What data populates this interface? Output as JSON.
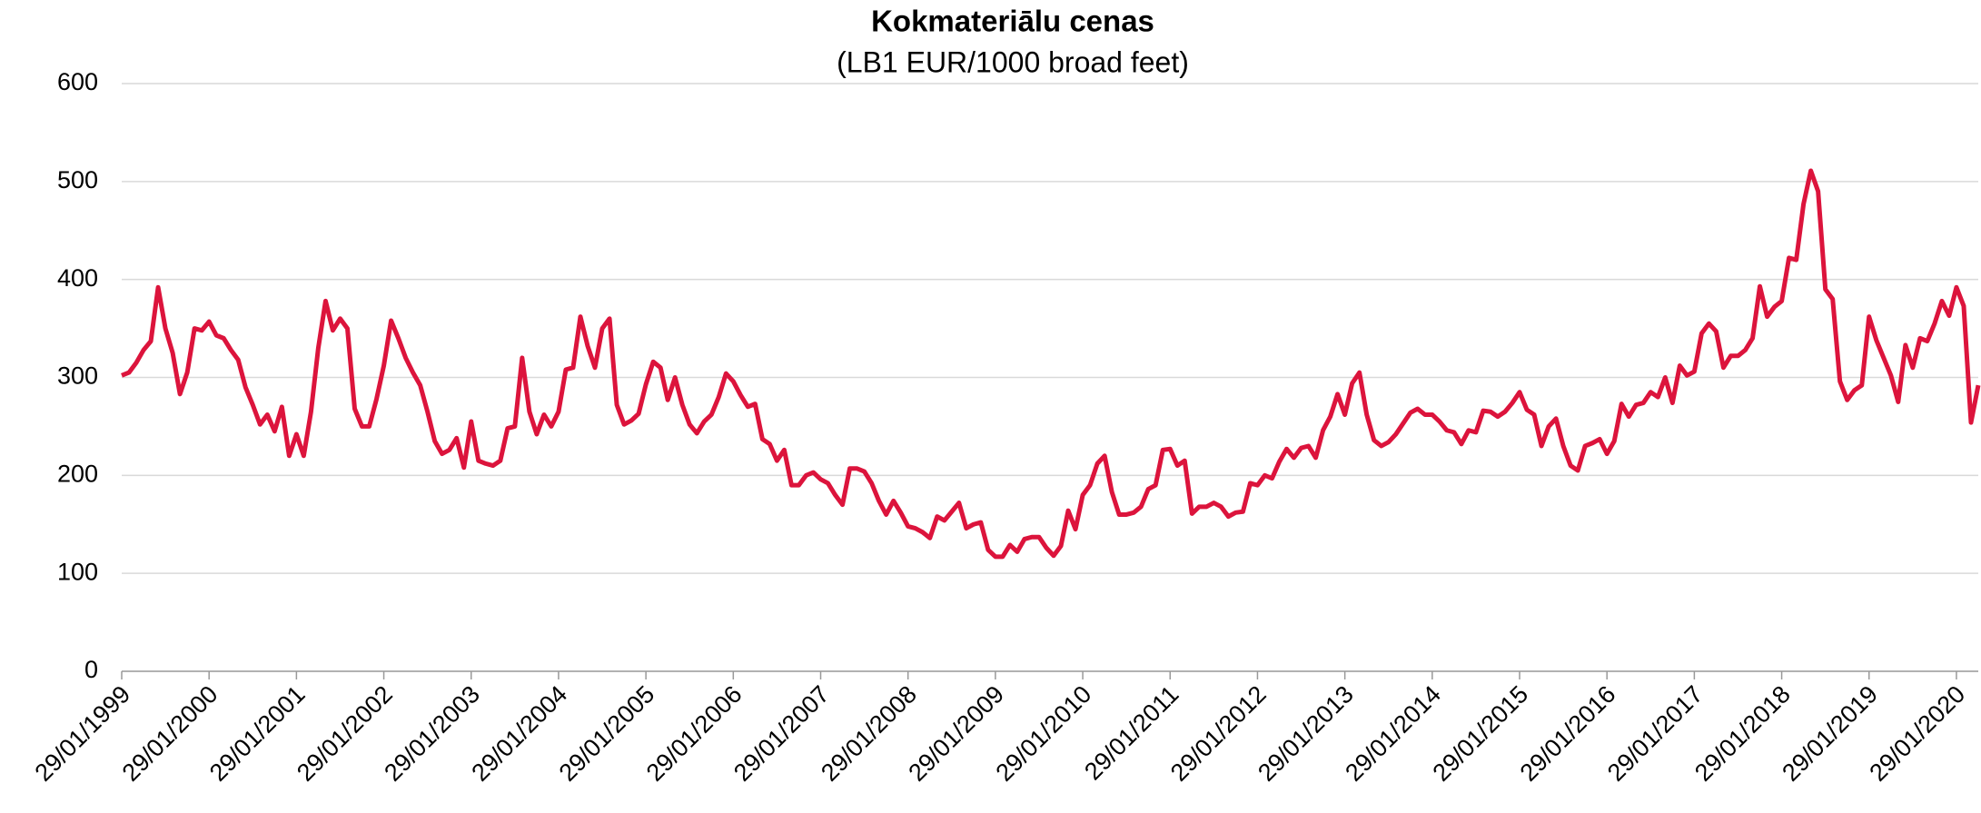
{
  "chart_data": {
    "type": "line",
    "title": "Kokmateriālu cenas",
    "subtitle": "(LB1 EUR/1000 broad feet)",
    "categories": [
      "29/01/1999",
      null,
      null,
      null,
      null,
      null,
      null,
      null,
      null,
      null,
      null,
      null,
      "29/01/2000",
      null,
      null,
      null,
      null,
      null,
      null,
      null,
      null,
      null,
      null,
      null,
      "29/01/2001",
      null,
      null,
      null,
      null,
      null,
      null,
      null,
      null,
      null,
      null,
      null,
      "29/01/2002",
      null,
      null,
      null,
      null,
      null,
      null,
      null,
      null,
      null,
      null,
      null,
      "29/01/2003",
      null,
      null,
      null,
      null,
      null,
      null,
      null,
      null,
      null,
      null,
      null,
      "29/01/2004",
      null,
      null,
      null,
      null,
      null,
      null,
      null,
      null,
      null,
      null,
      null,
      "29/01/2005",
      null,
      null,
      null,
      null,
      null,
      null,
      null,
      null,
      null,
      null,
      null,
      "29/01/2006",
      null,
      null,
      null,
      null,
      null,
      null,
      null,
      null,
      null,
      null,
      null,
      "29/01/2007",
      null,
      null,
      null,
      null,
      null,
      null,
      null,
      null,
      null,
      null,
      null,
      "29/01/2008",
      null,
      null,
      null,
      null,
      null,
      null,
      null,
      null,
      null,
      null,
      null,
      "29/01/2009",
      null,
      null,
      null,
      null,
      null,
      null,
      null,
      null,
      null,
      null,
      null,
      "29/01/2010",
      null,
      null,
      null,
      null,
      null,
      null,
      null,
      null,
      null,
      null,
      null,
      "29/01/2011",
      null,
      null,
      null,
      null,
      null,
      null,
      null,
      null,
      null,
      null,
      null,
      "29/01/2012",
      null,
      null,
      null,
      null,
      null,
      null,
      null,
      null,
      null,
      null,
      null,
      "29/01/2013",
      null,
      null,
      null,
      null,
      null,
      null,
      null,
      null,
      null,
      null,
      null,
      "29/01/2014",
      null,
      null,
      null,
      null,
      null,
      null,
      null,
      null,
      null,
      null,
      null,
      "29/01/2015",
      null,
      null,
      null,
      null,
      null,
      null,
      null,
      null,
      null,
      null,
      null,
      "29/01/2016",
      null,
      null,
      null,
      null,
      null,
      null,
      null,
      null,
      null,
      null,
      null,
      "29/01/2017",
      null,
      null,
      null,
      null,
      null,
      null,
      null,
      null,
      null,
      null,
      null,
      "29/01/2018",
      null,
      null,
      null,
      null,
      null,
      null,
      null,
      null,
      null,
      null,
      null,
      "29/01/2019",
      null,
      null,
      null,
      null,
      null,
      null,
      null,
      null,
      null,
      null,
      null,
      "29/01/2020",
      null,
      null,
      null
    ],
    "values": [
      302,
      305,
      315,
      328,
      337,
      392,
      350,
      325,
      283,
      305,
      350,
      348,
      357,
      343,
      340,
      328,
      318,
      290,
      272,
      252,
      262,
      245,
      270,
      220,
      242,
      220,
      265,
      330,
      378,
      348,
      360,
      350,
      268,
      250,
      250,
      278,
      312,
      358,
      340,
      320,
      305,
      292,
      265,
      235,
      222,
      226,
      238,
      208,
      255,
      215,
      212,
      210,
      215,
      248,
      250,
      320,
      265,
      242,
      262,
      250,
      265,
      308,
      310,
      362,
      332,
      310,
      350,
      360,
      272,
      252,
      256,
      263,
      293,
      316,
      310,
      277,
      300,
      272,
      252,
      243,
      255,
      262,
      280,
      304,
      296,
      282,
      270,
      273,
      237,
      232,
      215,
      226,
      190,
      190,
      200,
      203,
      196,
      192,
      180,
      170,
      207,
      207,
      204,
      192,
      174,
      160,
      174,
      162,
      148,
      146,
      142,
      136,
      158,
      154,
      163,
      172,
      146,
      150,
      152,
      124,
      117,
      117,
      129,
      122,
      135,
      137,
      137,
      126,
      118,
      128,
      164,
      145,
      180,
      190,
      212,
      220,
      183,
      160,
      160,
      162,
      168,
      186,
      190,
      226,
      227,
      210,
      215,
      161,
      168,
      168,
      172,
      168,
      158,
      162,
      163,
      192,
      190,
      200,
      197,
      214,
      227,
      218,
      228,
      230,
      218,
      246,
      260,
      283,
      262,
      294,
      305,
      262,
      236,
      230,
      234,
      242,
      253,
      264,
      268,
      262,
      262,
      255,
      246,
      244,
      232,
      246,
      244,
      266,
      265,
      260,
      265,
      274,
      285,
      267,
      262,
      230,
      250,
      258,
      230,
      210,
      205,
      230,
      233,
      237,
      222,
      235,
      273,
      260,
      272,
      274,
      285,
      280,
      300,
      274,
      312,
      302,
      306,
      345,
      355,
      347,
      310,
      322,
      322,
      328,
      340,
      393,
      362,
      372,
      378,
      422,
      420,
      477,
      511,
      490,
      390,
      380,
      296,
      277,
      287,
      292,
      362,
      338,
      320,
      302,
      275,
      333,
      310,
      340,
      337,
      355,
      378,
      363,
      392,
      373,
      254,
      292
    ],
    "color": "#dc143c",
    "ylim": [
      0,
      600
    ],
    "yticks": [
      0,
      100,
      200,
      300,
      400,
      500,
      600
    ],
    "grid": true
  }
}
